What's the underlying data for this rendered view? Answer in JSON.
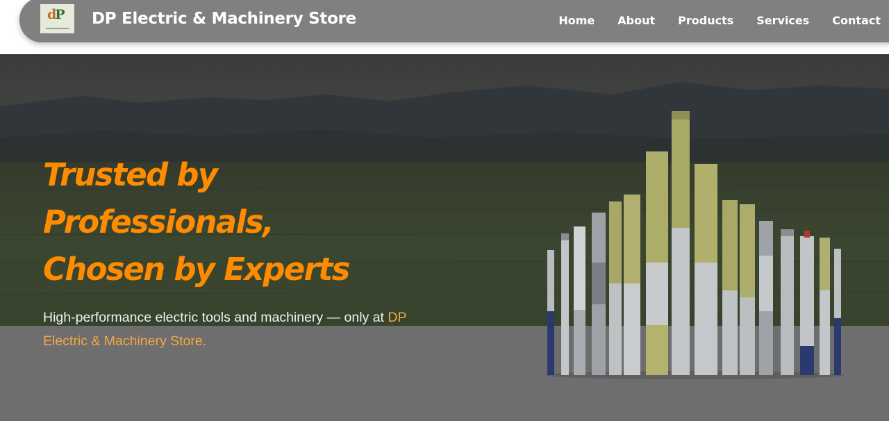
{
  "header": {
    "brand": "DP Electric & Machinery Store",
    "logo_icon": "dp-logo-icon",
    "nav": [
      {
        "label": "Home"
      },
      {
        "label": "About"
      },
      {
        "label": "Products"
      },
      {
        "label": "Services"
      },
      {
        "label": "Contact"
      }
    ]
  },
  "hero": {
    "heading_lines": [
      "Trusted by",
      "Professionals,",
      "Chosen by Experts"
    ],
    "subtitle_text": "High-performance electric tools and machinery — only at ",
    "subtitle_highlight": "DP Electric & Machinery Store."
  },
  "colors": {
    "accent": "#ff8c00",
    "highlight": "#f5a742",
    "navbar": "#808080"
  }
}
